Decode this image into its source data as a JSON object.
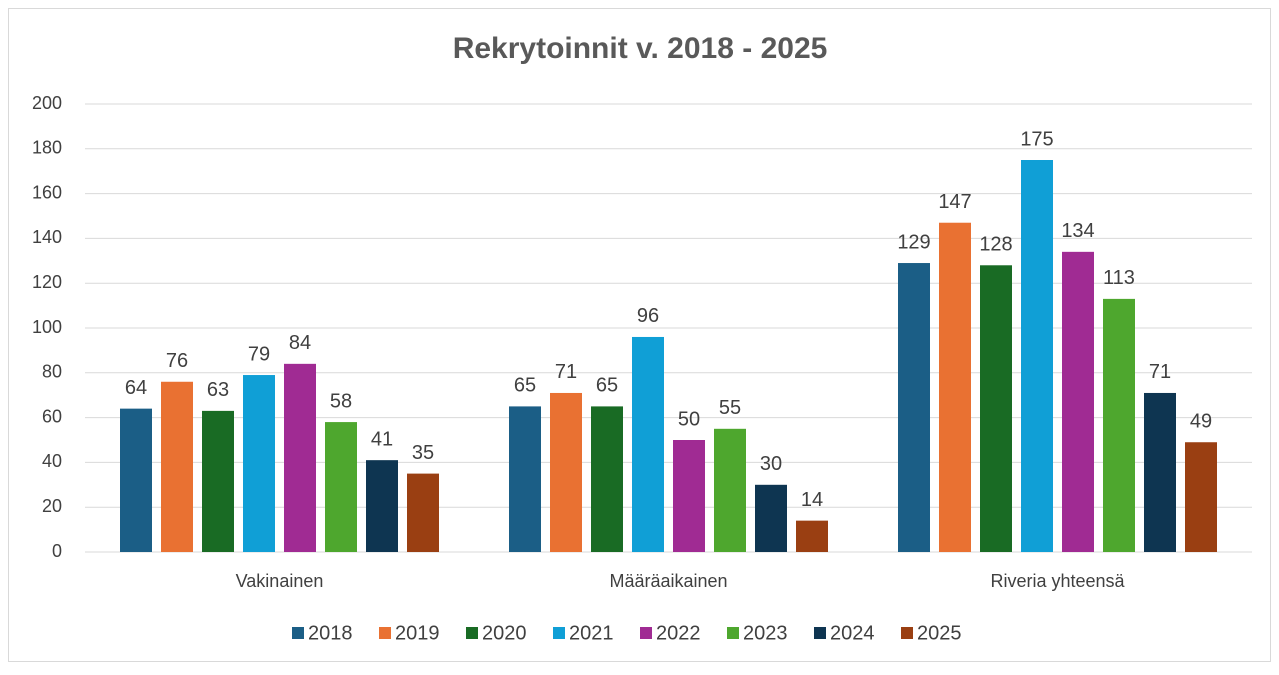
{
  "chart_data": {
    "type": "bar",
    "title": "Rekrytoinnit v. 2018 - 2025",
    "categories": [
      "Vakinainen",
      "Määräaikainen",
      "Riveria yhteensä"
    ],
    "series": [
      {
        "name": "2018",
        "color": "#1b5e86",
        "values": [
          64,
          65,
          129
        ]
      },
      {
        "name": "2019",
        "color": "#e97132",
        "values": [
          76,
          71,
          147
        ]
      },
      {
        "name": "2020",
        "color": "#196b24",
        "values": [
          63,
          65,
          128
        ]
      },
      {
        "name": "2021",
        "color": "#109fd6",
        "values": [
          79,
          96,
          175
        ]
      },
      {
        "name": "2022",
        "color": "#a02b93",
        "values": [
          84,
          50,
          134
        ]
      },
      {
        "name": "2023",
        "color": "#4ea72e",
        "values": [
          58,
          55,
          113
        ]
      },
      {
        "name": "2024",
        "color": "#0e3551",
        "values": [
          41,
          30,
          71
        ]
      },
      {
        "name": "2025",
        "color": "#9a3f12",
        "values": [
          35,
          14,
          49
        ]
      }
    ],
    "ylim": [
      0,
      200
    ],
    "yticks": [
      0,
      20,
      40,
      60,
      80,
      100,
      120,
      140,
      160,
      180,
      200
    ],
    "grid": true,
    "legend": "bottom"
  }
}
